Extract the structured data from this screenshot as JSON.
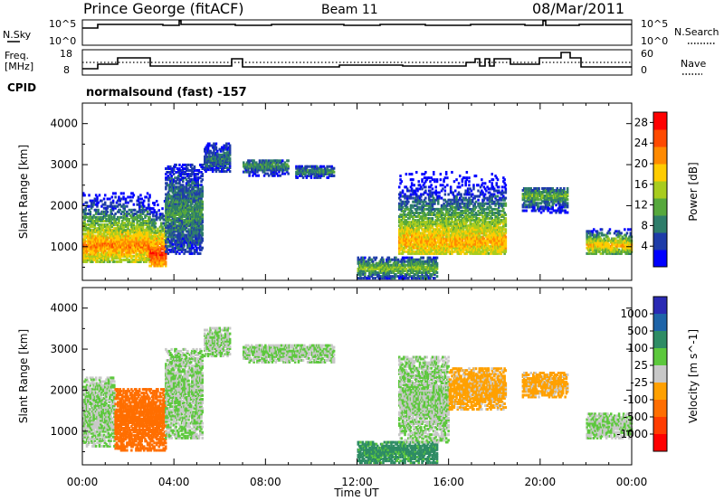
{
  "header": {
    "title": "Prince George (fitACF)",
    "beam": "Beam 11",
    "date": "08/Mar/2011"
  },
  "panels": {
    "nsky_label": "N.Sky",
    "nsearch_label": "N.Search",
    "counts_ticks": [
      "10^5",
      "10^0"
    ],
    "freq_label_1": "Freq.",
    "freq_label_2": "[MHz]",
    "freq_ticks": [
      "18",
      "8"
    ],
    "nave_label": "Nave",
    "nave_ticks": [
      "60",
      "0"
    ],
    "cpid_label": "CPID",
    "cpid_text": "normalsound (fast) -157"
  },
  "chart_data": [
    {
      "type": "heatmap",
      "title": "",
      "xlabel": "Time UT",
      "ylabel": "Slant Range [km]",
      "x_ticks": [
        "00:00",
        "04:00",
        "08:00",
        "12:00",
        "16:00",
        "20:00",
        "00:00"
      ],
      "xlim_hours": [
        0,
        24
      ],
      "y_ticks": [
        1000,
        2000,
        3000,
        4000
      ],
      "ylim": [
        180,
        4500
      ],
      "colorbar": {
        "label": "Power [dB]",
        "ticks": [
          4,
          8,
          12,
          16,
          20,
          24,
          28
        ],
        "range": [
          0,
          30
        ],
        "colors": [
          "#0000ff",
          "#1e3ca8",
          "#2e7d6a",
          "#56a83c",
          "#a8cc1e",
          "#ffcc00",
          "#ff8a00",
          "#ff4a00",
          "#ff0000"
        ]
      },
      "echo_regions": [
        {
          "t_start": 0.0,
          "t_end": 2.9,
          "range_low": 600,
          "range_high": 2300,
          "peak_range": 1000,
          "level": 22
        },
        {
          "t_start": 2.9,
          "t_end": 3.6,
          "range_low": 500,
          "range_high": 2100,
          "peak_range": 800,
          "level": 26
        },
        {
          "t_start": 3.6,
          "t_end": 5.2,
          "range_low": 800,
          "range_high": 3000,
          "peak_range": 1800,
          "level": 10
        },
        {
          "t_start": 5.3,
          "t_end": 6.4,
          "range_low": 2800,
          "range_high": 3500,
          "peak_range": 3100,
          "level": 8
        },
        {
          "t_start": 7.0,
          "t_end": 9.0,
          "range_low": 2700,
          "range_high": 3100,
          "peak_range": 2950,
          "level": 10
        },
        {
          "t_start": 9.3,
          "t_end": 11.0,
          "range_low": 2650,
          "range_high": 2950,
          "peak_range": 2800,
          "level": 10
        },
        {
          "t_start": 12.0,
          "t_end": 15.5,
          "range_low": 200,
          "range_high": 700,
          "peak_range": 450,
          "level": 14
        },
        {
          "t_start": 13.8,
          "t_end": 18.5,
          "range_low": 800,
          "range_high": 2800,
          "peak_range": 1100,
          "level": 20
        },
        {
          "t_start": 19.2,
          "t_end": 21.2,
          "range_low": 1800,
          "range_high": 2400,
          "peak_range": 2200,
          "level": 12
        },
        {
          "t_start": 22.0,
          "t_end": 24.0,
          "range_low": 800,
          "range_high": 1400,
          "peak_range": 1000,
          "level": 20
        }
      ]
    },
    {
      "type": "heatmap",
      "title": "",
      "xlabel": "Time UT",
      "ylabel": "Slant Range [km]",
      "x_ticks": [
        "00:00",
        "04:00",
        "08:00",
        "12:00",
        "16:00",
        "20:00",
        "00:00"
      ],
      "xlim_hours": [
        0,
        24
      ],
      "y_ticks": [
        1000,
        2000,
        3000,
        4000
      ],
      "ylim": [
        180,
        4500
      ],
      "colorbar": {
        "label": "Velocity [m s^-1]",
        "ticks": [
          1000,
          500,
          100,
          25,
          -25,
          -100,
          -500,
          -1000
        ],
        "colors": [
          "#2a2ab4",
          "#1e64a8",
          "#2e8c64",
          "#5cc83c",
          "#c8c8c8",
          "#ffa000",
          "#ff6e00",
          "#ff3c00",
          "#ff0000"
        ]
      },
      "echo_regions": [
        {
          "t_start": 0.0,
          "t_end": 1.4,
          "range_low": 600,
          "range_high": 2300,
          "velocity": 0
        },
        {
          "t_start": 1.4,
          "t_end": 3.6,
          "range_low": 500,
          "range_high": 2000,
          "velocity": -500
        },
        {
          "t_start": 3.6,
          "t_end": 5.2,
          "range_low": 800,
          "range_high": 3000,
          "velocity": 0
        },
        {
          "t_start": 5.3,
          "t_end": 6.4,
          "range_low": 2800,
          "range_high": 3500,
          "velocity": 0
        },
        {
          "t_start": 7.0,
          "t_end": 11.0,
          "range_low": 2650,
          "range_high": 3100,
          "velocity": 0
        },
        {
          "t_start": 12.0,
          "t_end": 15.5,
          "range_low": 200,
          "range_high": 700,
          "velocity": 100
        },
        {
          "t_start": 13.8,
          "t_end": 16.0,
          "range_low": 700,
          "range_high": 2800,
          "velocity": 0
        },
        {
          "t_start": 16.0,
          "t_end": 18.5,
          "range_low": 1500,
          "range_high": 2500,
          "velocity": -100
        },
        {
          "t_start": 19.2,
          "t_end": 21.2,
          "range_low": 1800,
          "range_high": 2400,
          "velocity": -100
        },
        {
          "t_start": 22.0,
          "t_end": 24.0,
          "range_low": 800,
          "range_high": 1400,
          "velocity": 0
        }
      ]
    }
  ]
}
